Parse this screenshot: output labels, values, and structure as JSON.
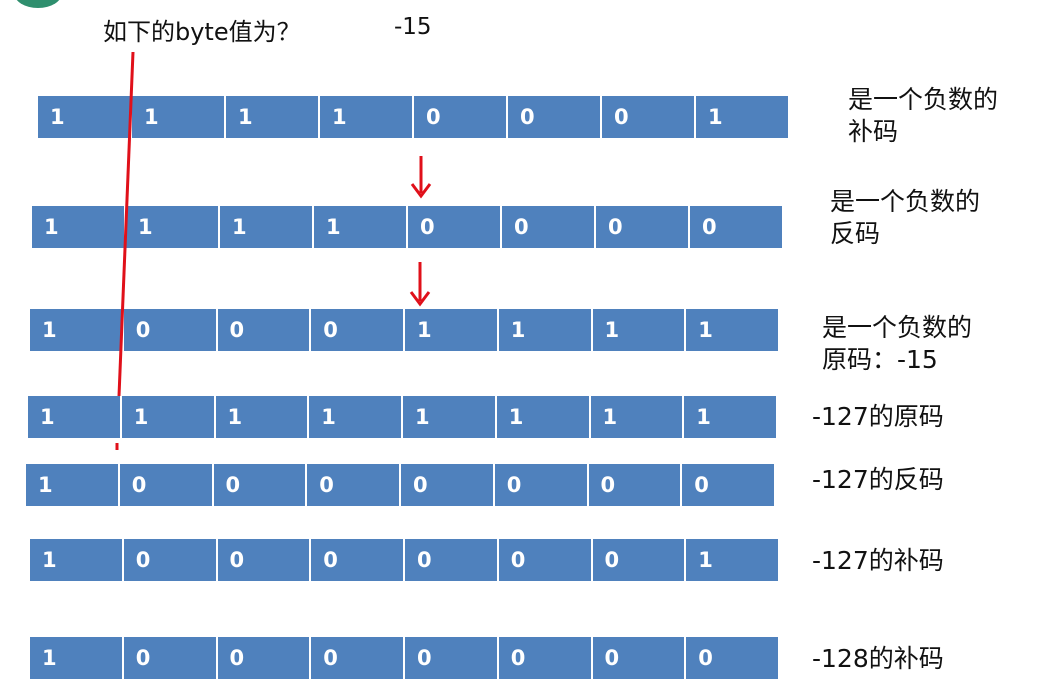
{
  "title": "如下的byte值为？",
  "answer": "-15",
  "rows": [
    {
      "bits": [
        "1",
        "1",
        "1",
        "1",
        "0",
        "0",
        "0",
        "1"
      ],
      "label": [
        "是一个负数的",
        "补码"
      ]
    },
    {
      "bits": [
        "1",
        "1",
        "1",
        "1",
        "0",
        "0",
        "0",
        "0"
      ],
      "label": [
        "是一个负数的",
        "反码"
      ]
    },
    {
      "bits": [
        "1",
        "0",
        "0",
        "0",
        "1",
        "1",
        "1",
        "1"
      ],
      "label": [
        "是一个负数的",
        "原码：-15"
      ]
    },
    {
      "bits": [
        "1",
        "1",
        "1",
        "1",
        "1",
        "1",
        "1",
        "1"
      ],
      "label": [
        "-127的原码"
      ]
    },
    {
      "bits": [
        "1",
        "0",
        "0",
        "0",
        "0",
        "0",
        "0",
        "0"
      ],
      "label": [
        "-127的反码"
      ]
    },
    {
      "bits": [
        "1",
        "0",
        "0",
        "0",
        "0",
        "0",
        "0",
        "1"
      ],
      "label": [
        "-127的补码"
      ]
    },
    {
      "bits": [
        "1",
        "0",
        "0",
        "0",
        "0",
        "0",
        "0",
        "0"
      ],
      "label": [
        "-128的补码"
      ]
    }
  ],
  "colors": {
    "cell": "#4f81bd",
    "arrow": "#e0101a",
    "line": "#e0101a"
  }
}
